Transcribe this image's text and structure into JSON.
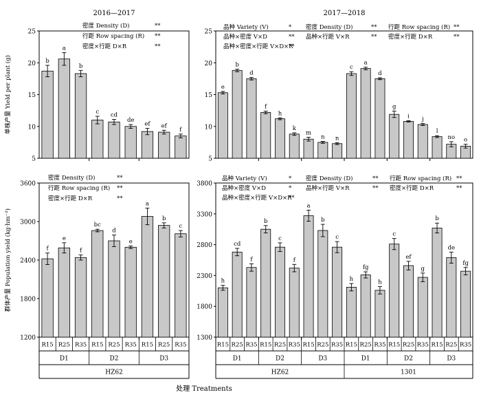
{
  "figure": {
    "xlabel_common": "处理 Treatments",
    "bar_color": "#c8c8c8"
  },
  "chart_data": [
    {
      "id": "tl",
      "type": "bar",
      "title": "2016—2017",
      "ylabel": "单株产量 Yield per plant (g)",
      "ylim": [
        5,
        25
      ],
      "yticks": [
        5,
        10,
        15,
        20,
        25
      ],
      "categories": [
        "R15",
        "R25",
        "R35",
        "R15",
        "R25",
        "R35",
        "R15",
        "R25",
        "R35"
      ],
      "values": [
        18.7,
        20.6,
        18.3,
        11.0,
        10.7,
        10.0,
        9.2,
        9.1,
        8.5
      ],
      "errors": [
        0.9,
        1.0,
        0.5,
        0.6,
        0.4,
        0.3,
        0.5,
        0.3,
        0.3
      ],
      "letters": [
        "b",
        "a",
        "b",
        "c",
        "cd",
        "de",
        "ef",
        "ef",
        "f"
      ],
      "annotations": [
        {
          "label": "密度 Density (D)",
          "sig": "**"
        },
        {
          "label": "行距 Row spacing (R)",
          "sig": "**"
        },
        {
          "label": "密度×行距 D×R",
          "sig": "**"
        }
      ]
    },
    {
      "id": "tr",
      "type": "bar",
      "title": "2017—2018",
      "ylabel": "",
      "ylim": [
        5,
        25
      ],
      "yticks": [
        5,
        10,
        15,
        20,
        25
      ],
      "categories": [
        "R15",
        "R25",
        "R35",
        "R15",
        "R25",
        "R35",
        "R15",
        "R25",
        "R35",
        "R15",
        "R25",
        "R35",
        "R15",
        "R25",
        "R35",
        "R15",
        "R25",
        "R35"
      ],
      "values": [
        15.3,
        18.8,
        17.5,
        12.2,
        11.2,
        8.8,
        8.0,
        7.5,
        7.3,
        18.3,
        19.1,
        17.5,
        11.9,
        10.8,
        10.3,
        8.4,
        7.2,
        6.9
      ],
      "errors": [
        0.2,
        0.2,
        0.2,
        0.2,
        0.15,
        0.2,
        0.3,
        0.15,
        0.15,
        0.3,
        0.2,
        0.15,
        0.5,
        0.1,
        0.15,
        0.15,
        0.4,
        0.3
      ],
      "letters": [
        "e",
        "b",
        "d",
        "f",
        "h",
        "k",
        "m",
        "n",
        "n",
        "c",
        "a",
        "d",
        "g",
        "i",
        "j",
        "l",
        "no",
        "o"
      ],
      "annotations": [
        {
          "label": "品种 Variety (V)",
          "sig": "*"
        },
        {
          "label": "密度 Density (D)",
          "sig": "**"
        },
        {
          "label": "行距 Row spacing (R)",
          "sig": "**"
        },
        {
          "label": "品种×密度 V×D",
          "sig": "**"
        },
        {
          "label": "品种×行距 V×R",
          "sig": "**"
        },
        {
          "label": "密度×行距 D×R",
          "sig": "**"
        },
        {
          "label": "品种×密度×行距 V×D×R",
          "sig": "**"
        }
      ]
    },
    {
      "id": "bl",
      "type": "bar",
      "title": "",
      "ylabel": "群体产量 Population yield (kg·hm⁻²)",
      "ylim": [
        1200,
        3600
      ],
      "yticks": [
        1200,
        1800,
        2400,
        3000,
        3600
      ],
      "categories": [
        "R15",
        "R25",
        "R35",
        "R15",
        "R25",
        "R35",
        "R15",
        "R25",
        "R35"
      ],
      "values": [
        2420,
        2590,
        2440,
        2860,
        2700,
        2600,
        3080,
        2940,
        2810
      ],
      "errors": [
        90,
        80,
        40,
        20,
        90,
        20,
        130,
        40,
        50
      ],
      "letters": [
        "f",
        "e",
        "f",
        "bc",
        "d",
        "e",
        "a",
        "b",
        "c"
      ],
      "annotations": [
        {
          "label": "密度 Density (D)",
          "sig": "**"
        },
        {
          "label": "行距 Row spacing (R)",
          "sig": "**"
        },
        {
          "label": "密度×行距 D×R",
          "sig": "**"
        }
      ],
      "groups": [
        "D1",
        "D2",
        "D3"
      ],
      "varieties": [
        "HZ62"
      ]
    },
    {
      "id": "br",
      "type": "bar",
      "title": "",
      "ylabel": "",
      "ylim": [
        1300,
        3800
      ],
      "yticks": [
        1300,
        1800,
        2300,
        2800,
        3300,
        3800
      ],
      "categories": [
        "R15",
        "R25",
        "R35",
        "R15",
        "R25",
        "R35",
        "R15",
        "R25",
        "R35",
        "R15",
        "R25",
        "R35",
        "R15",
        "R25",
        "R35",
        "R15",
        "R25",
        "R35"
      ],
      "values": [
        2100,
        2680,
        2430,
        3050,
        2760,
        2420,
        3270,
        3030,
        2760,
        2110,
        2310,
        2060,
        2810,
        2460,
        2270,
        3070,
        2590,
        2370
      ],
      "errors": [
        40,
        60,
        60,
        60,
        70,
        60,
        90,
        100,
        90,
        60,
        50,
        60,
        90,
        70,
        70,
        80,
        90,
        60
      ],
      "letters": [
        "h",
        "cd",
        "f",
        "b",
        "c",
        "f",
        "a",
        "b",
        "c",
        "h",
        "fg",
        "h",
        "c",
        "ef",
        "g",
        "b",
        "de",
        "fg"
      ],
      "annotations": [
        {
          "label": "品种 Variety (V)",
          "sig": "*"
        },
        {
          "label": "密度 Density (D)",
          "sig": "**"
        },
        {
          "label": "行距 Row spacing (R)",
          "sig": "**"
        },
        {
          "label": "品种×密度 V×D",
          "sig": "*"
        },
        {
          "label": "品种×行距 V×R",
          "sig": "**"
        },
        {
          "label": "密度×行距 D×R",
          "sig": "**"
        },
        {
          "label": "品种×密度×行距 V×D×R",
          "sig": "**"
        }
      ],
      "groups": [
        "D1",
        "D2",
        "D3",
        "D1",
        "D2",
        "D3"
      ],
      "varieties": [
        "HZ62",
        "1301"
      ]
    }
  ]
}
